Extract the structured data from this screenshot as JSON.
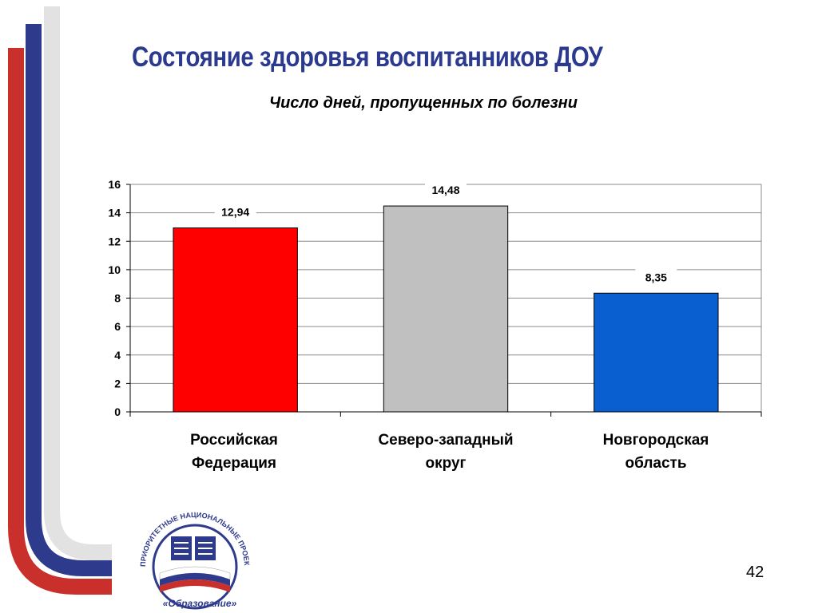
{
  "slide": {
    "title": "Состояние здоровья воспитанников ДОУ",
    "page_number": "42"
  },
  "logo": {
    "arc_text": "ПРИОРИТЕТНЫЕ НАЦИОНАЛЬНЫЕ ПРОЕКТЫ",
    "bottom_text": "«Образование»"
  },
  "colors": {
    "title": "#2b3a8f",
    "stripe_red": "#c9302c",
    "stripe_blue": "#2e3a8c",
    "bar_red": "#ff0000",
    "bar_gray": "#c0c0c0",
    "bar_blue": "#0a5fd0"
  },
  "chart_data": {
    "type": "bar",
    "title": "Число дней, пропущенных по болезни",
    "xlabel": "",
    "ylabel": "",
    "categories": [
      "Российская Федерация",
      "Северо-западный округ",
      "Новгородская область"
    ],
    "category_lines": [
      [
        "Российская",
        "Федерация"
      ],
      [
        "Северо-западный",
        "округ"
      ],
      [
        "Новгородская",
        "область"
      ]
    ],
    "values": [
      12.94,
      14.48,
      8.35
    ],
    "value_labels": [
      "12,94",
      "14,48",
      "8,35"
    ],
    "bar_colors": [
      "#ff0000",
      "#c0c0c0",
      "#0a5fd0"
    ],
    "ylim": [
      0,
      16
    ],
    "yticks": [
      "0",
      "2",
      "4",
      "6",
      "8",
      "10",
      "12",
      "14",
      "16"
    ],
    "grid": true,
    "legend": "none"
  }
}
